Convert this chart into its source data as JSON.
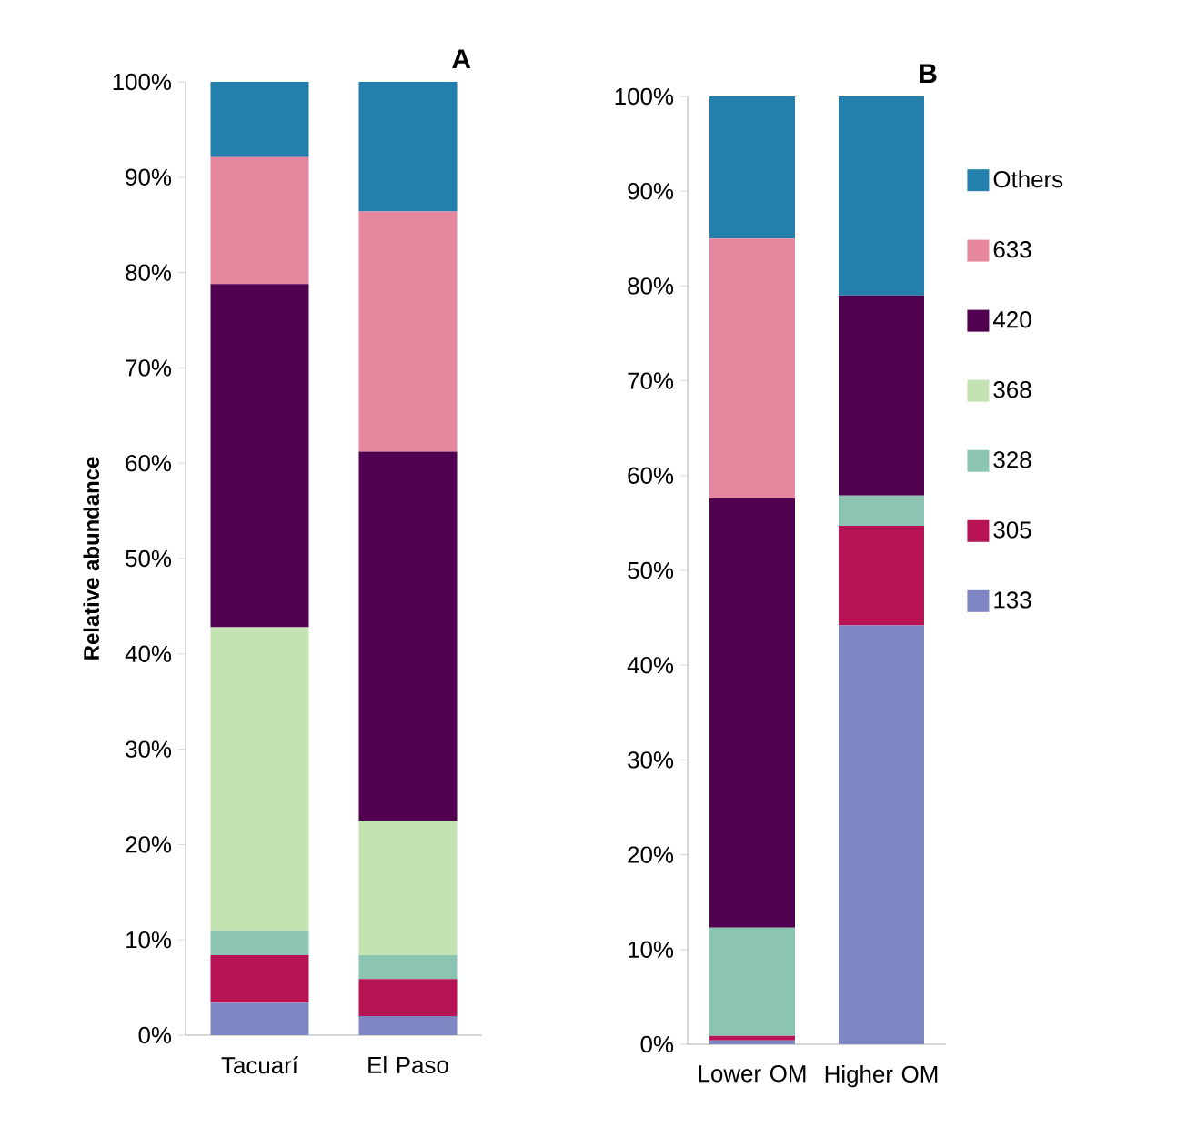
{
  "chart_data": [
    {
      "type": "bar",
      "stacked": true,
      "title": "A",
      "ylabel": "Relative abundance",
      "categories": [
        "Tacuarí",
        "El Paso"
      ],
      "ylim": [
        0,
        100
      ],
      "yticks": [
        {
          "value": 0,
          "label": "0%"
        },
        {
          "value": 10,
          "label": "10%"
        },
        {
          "value": 20,
          "label": "20%"
        },
        {
          "value": 30,
          "label": "30%"
        },
        {
          "value": 40,
          "label": "40%"
        },
        {
          "value": 50,
          "label": "50%"
        },
        {
          "value": 60,
          "label": "60%"
        },
        {
          "value": 70,
          "label": "70%"
        },
        {
          "value": 80,
          "label": "80%"
        },
        {
          "value": 90,
          "label": "90%"
        },
        {
          "value": 100,
          "label": "100%"
        }
      ],
      "series": [
        {
          "color": "#7e87c4",
          "values": [
            3.4,
            2.0
          ]
        },
        {
          "color": "#b81455",
          "values": [
            5.0,
            3.9
          ]
        },
        {
          "color": "#8cc4b4",
          "values": [
            2.5,
            2.5
          ]
        },
        {
          "color": "#c3e4b2",
          "values": [
            31.9,
            14.1
          ]
        },
        {
          "color": "#520050",
          "values": [
            36.0,
            38.7
          ]
        },
        {
          "color": "#e6879f",
          "values": [
            13.3,
            25.2
          ]
        },
        {
          "color": "#237fab",
          "values": [
            7.9,
            13.6
          ]
        }
      ]
    },
    {
      "type": "bar",
      "stacked": true,
      "title": "B",
      "legend": "right",
      "categories": [
        "Lower OM",
        "Higher OM"
      ],
      "ylim": [
        0,
        100
      ],
      "yticks": [
        {
          "value": 0,
          "label": "0%"
        },
        {
          "value": 10,
          "label": "10%"
        },
        {
          "value": 20,
          "label": "20%"
        },
        {
          "value": 30,
          "label": "30%"
        },
        {
          "value": 40,
          "label": "40%"
        },
        {
          "value": 50,
          "label": "50%"
        },
        {
          "value": 60,
          "label": "60%"
        },
        {
          "value": 70,
          "label": "70%"
        },
        {
          "value": 80,
          "label": "80%"
        },
        {
          "value": 90,
          "label": "90%"
        },
        {
          "value": 100,
          "label": "100%"
        }
      ],
      "series": [
        {
          "name": "133",
          "color": "#7e87c4",
          "values": [
            0.4,
            44.2
          ]
        },
        {
          "name": "305",
          "color": "#b81455",
          "values": [
            0.5,
            10.5
          ]
        },
        {
          "name": "328",
          "color": "#8cc4b4",
          "values": [
            11.4,
            3.2
          ]
        },
        {
          "name": "368",
          "color": "#c3e4b2",
          "values": [
            0,
            0
          ]
        },
        {
          "name": "420",
          "color": "#520050",
          "values": [
            45.3,
            21.1
          ]
        },
        {
          "name": "633",
          "color": "#e6879f",
          "values": [
            27.4,
            0
          ]
        },
        {
          "name": "Others",
          "color": "#237fab",
          "values": [
            15.0,
            21.0
          ]
        }
      ]
    }
  ]
}
